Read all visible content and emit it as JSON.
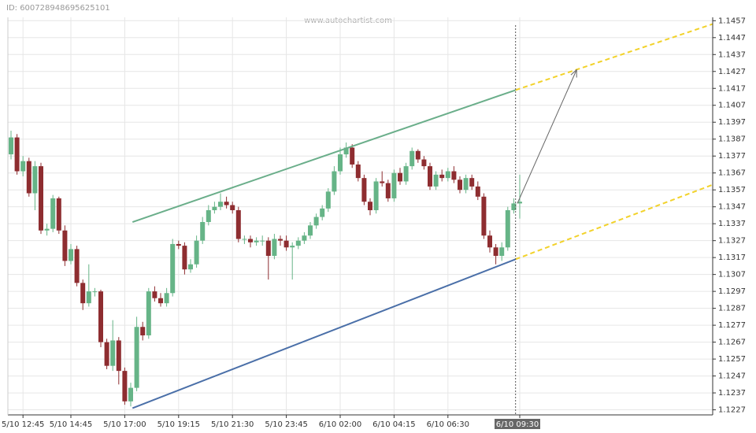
{
  "chart_data": {
    "type": "candlestick",
    "id_label": "ID: 600728948695625101",
    "watermark": "www.autochartist.com",
    "categories": [
      null,
      null,
      "5/10 12:45",
      null,
      null,
      null,
      null,
      null,
      null,
      null,
      "5/10 14:45",
      null,
      null,
      null,
      null,
      null,
      null,
      null,
      null,
      "5/10 17:00",
      null,
      null,
      null,
      null,
      null,
      null,
      null,
      null,
      "5/10 19:15",
      null,
      null,
      null,
      null,
      null,
      null,
      null,
      null,
      "5/10 21:30",
      null,
      null,
      null,
      null,
      null,
      null,
      null,
      null,
      "5/10 23:45",
      null,
      null,
      null,
      null,
      null,
      null,
      null,
      null,
      "6/10 02:00",
      null,
      null,
      null,
      null,
      null,
      null,
      null,
      null,
      "6/10 04:15",
      null,
      null,
      null,
      null,
      null,
      null,
      null,
      null,
      "6/10 06:30",
      null,
      null,
      null,
      null,
      null,
      null,
      null,
      null,
      null,
      null,
      null,
      "6/10 09:30"
    ],
    "open": [
      1.1378,
      1.1388,
      1.1368,
      1.1374,
      1.1355,
      1.1371,
      1.1333,
      1.1334,
      1.1352,
      1.1333,
      1.1315,
      1.1322,
      1.1302,
      1.129,
      1.1297,
      1.1297,
      1.1267,
      1.1253,
      1.1268,
      1.125,
      1.1232,
      1.124,
      1.1276,
      1.1271,
      1.1297,
      1.1293,
      1.129,
      1.1296,
      1.1325,
      1.1324,
      1.131,
      1.1313,
      1.1327,
      1.1338,
      1.1345,
      1.1347,
      1.135,
      1.1348,
      1.1345,
      1.1328,
      1.1328,
      1.1326,
      1.1327,
      1.1327,
      1.1318,
      1.1328,
      1.1327,
      1.1323,
      1.1324,
      1.1327,
      1.133,
      1.1336,
      1.1341,
      1.1346,
      1.1356,
      1.1368,
      1.1378,
      1.1382,
      1.1372,
      1.1364,
      1.135,
      1.1345,
      1.1362,
      1.1361,
      1.1352,
      1.1367,
      1.1362,
      1.1371,
      1.138,
      1.1375,
      1.1371,
      1.1359,
      1.1366,
      1.1364,
      1.1368,
      1.1363,
      1.1357,
      1.1364,
      1.1359,
      1.1353,
      1.133,
      1.1323,
      1.1318,
      1.1323,
      1.1345,
      1.1349
    ],
    "high": [
      1.1392,
      1.139,
      1.1377,
      1.1376,
      1.1374,
      1.1373,
      1.1337,
      1.1354,
      1.1353,
      1.1336,
      1.1325,
      1.1324,
      1.1304,
      1.1313,
      1.1299,
      1.1298,
      1.1269,
      1.128,
      1.127,
      1.1252,
      1.1243,
      1.1282,
      1.1279,
      1.1299,
      1.13,
      1.1296,
      1.1299,
      1.1328,
      1.1327,
      1.1326,
      1.1316,
      1.133,
      1.1341,
      1.1348,
      1.135,
      1.1355,
      1.1353,
      1.135,
      1.1347,
      1.133,
      1.133,
      1.1329,
      1.133,
      1.1329,
      1.1331,
      1.133,
      1.133,
      1.1326,
      1.1329,
      1.1332,
      1.1338,
      1.1343,
      1.1348,
      1.1358,
      1.1371,
      1.1382,
      1.1385,
      1.1384,
      1.1374,
      1.1366,
      1.1352,
      1.1364,
      1.1368,
      1.1363,
      1.1369,
      1.137,
      1.1373,
      1.1382,
      1.1381,
      1.1377,
      1.1373,
      1.1368,
      1.1369,
      1.137,
      1.1371,
      1.1365,
      1.1366,
      1.1366,
      1.1362,
      1.1355,
      1.1333,
      1.1325,
      1.1326,
      1.1347,
      1.1352,
      1.1366
    ],
    "low": [
      1.1375,
      1.1366,
      1.1365,
      1.1353,
      1.1345,
      1.1331,
      1.133,
      1.1332,
      1.1331,
      1.1312,
      1.1313,
      1.13,
      1.1286,
      1.1288,
      1.1294,
      1.1264,
      1.1251,
      1.125,
      1.1242,
      1.123,
      1.1229,
      1.1238,
      1.1268,
      1.1269,
      1.1291,
      1.1288,
      1.1288,
      1.1294,
      1.1322,
      1.1307,
      1.1308,
      1.1311,
      1.1325,
      1.1336,
      1.1343,
      1.1345,
      1.1346,
      1.1343,
      1.1326,
      1.1325,
      1.1323,
      1.1324,
      1.1324,
      1.1304,
      1.1316,
      1.1324,
      1.1321,
      1.1304,
      1.1322,
      1.1325,
      1.1328,
      1.1334,
      1.1339,
      1.1344,
      1.1354,
      1.1366,
      1.1376,
      1.137,
      1.1362,
      1.1348,
      1.1342,
      1.1343,
      1.1359,
      1.135,
      1.135,
      1.136,
      1.136,
      1.1369,
      1.1373,
      1.1369,
      1.1357,
      1.1357,
      1.1362,
      1.1362,
      1.1361,
      1.1355,
      1.1355,
      1.1357,
      1.1351,
      1.1328,
      1.132,
      1.1313,
      1.1315,
      1.1321,
      1.1343,
      1.134
    ],
    "close": [
      1.1388,
      1.1368,
      1.1374,
      1.1355,
      1.1371,
      1.1333,
      1.1334,
      1.1352,
      1.1333,
      1.1315,
      1.1322,
      1.1302,
      1.129,
      1.1297,
      1.1297,
      1.1267,
      1.1253,
      1.1268,
      1.125,
      1.1232,
      1.124,
      1.1276,
      1.1271,
      1.1297,
      1.1293,
      1.129,
      1.1296,
      1.1325,
      1.1324,
      1.131,
      1.1313,
      1.1327,
      1.1338,
      1.1345,
      1.1347,
      1.135,
      1.1348,
      1.1345,
      1.1328,
      1.1328,
      1.1326,
      1.1327,
      1.1327,
      1.1318,
      1.1328,
      1.1327,
      1.1323,
      1.1324,
      1.1327,
      1.133,
      1.1336,
      1.1341,
      1.1346,
      1.1356,
      1.1368,
      1.1378,
      1.1382,
      1.1372,
      1.1364,
      1.135,
      1.1345,
      1.1362,
      1.1361,
      1.1352,
      1.1367,
      1.1362,
      1.1371,
      1.138,
      1.1375,
      1.1371,
      1.1359,
      1.1366,
      1.1364,
      1.1368,
      1.1363,
      1.1357,
      1.1364,
      1.1359,
      1.1353,
      1.133,
      1.1323,
      1.1318,
      1.1323,
      1.1345,
      1.1349,
      1.135
    ],
    "up_color": "#66b487",
    "down_color": "#8e2d30",
    "ylim": [
      1.1224,
      1.1459
    ],
    "yticks": [
      1.1227,
      1.1237,
      1.1247,
      1.1257,
      1.1267,
      1.1277,
      1.1287,
      1.1297,
      1.1307,
      1.1317,
      1.1327,
      1.1337,
      1.1347,
      1.1357,
      1.1367,
      1.1377,
      1.1387,
      1.1397,
      1.1407,
      1.1417,
      1.1427,
      1.1437,
      1.1447,
      1.1457
    ],
    "grid": true,
    "overlays": [
      {
        "color": "#6aae8a",
        "style": "solid",
        "x": [
          20.3,
          84.3
        ],
        "y": [
          1.1338,
          1.1416
        ]
      },
      {
        "color": "#4a6fa8",
        "style": "solid",
        "x": [
          20.3,
          84.3
        ],
        "y": [
          1.1228,
          1.1316
        ]
      },
      {
        "color": "#f2d22a",
        "style": "dashed",
        "x": [
          84.3,
          117.2
        ],
        "y": [
          1.1416,
          1.1455
        ]
      },
      {
        "color": "#f2d22a",
        "style": "dashed",
        "x": [
          84.3,
          117.2
        ],
        "y": [
          1.1316,
          1.136
        ]
      },
      {
        "color": "#666666",
        "style": "arrow",
        "x": [
          84.6,
          94.5
        ],
        "y": [
          1.1349,
          1.1428
        ]
      }
    ]
  }
}
